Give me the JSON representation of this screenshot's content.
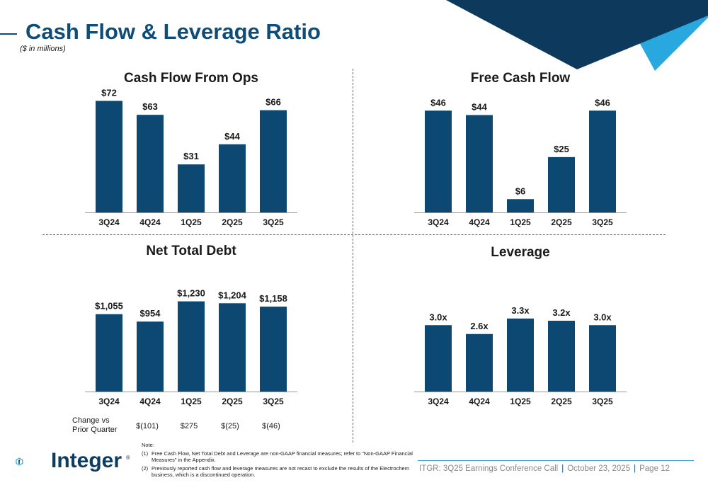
{
  "page": {
    "title": "Cash Flow & Leverage Ratio",
    "subtitle": "($ in millions)"
  },
  "colors": {
    "bar": "#0d4872",
    "title": "#0e4d7a",
    "accent_light": "#29a8e0",
    "accent_dark": "#0d3a5c"
  },
  "chart_data": [
    {
      "type": "bar",
      "title": "Cash Flow From Ops",
      "categories": [
        "3Q24",
        "4Q24",
        "1Q25",
        "2Q25",
        "3Q25"
      ],
      "values": [
        72,
        63,
        31,
        44,
        66
      ],
      "labels": [
        "$72",
        "$63",
        "$31",
        "$44",
        "$66"
      ],
      "ylim": [
        0,
        80
      ],
      "grid": false
    },
    {
      "type": "bar",
      "title": "Free Cash Flow",
      "categories": [
        "3Q24",
        "4Q24",
        "1Q25",
        "2Q25",
        "3Q25"
      ],
      "values": [
        46,
        44,
        6,
        25,
        46
      ],
      "labels": [
        "$46",
        "$44",
        "$6",
        "$25",
        "$46"
      ],
      "ylim": [
        0,
        56
      ],
      "grid": false
    },
    {
      "type": "bar",
      "title": "Net Total Debt",
      "categories": [
        "3Q24",
        "4Q24",
        "1Q25",
        "2Q25",
        "3Q25"
      ],
      "values": [
        1055,
        954,
        1230,
        1204,
        1158
      ],
      "labels": [
        "$1,055",
        "$954",
        "$1,230",
        "$1,204",
        "$1,158"
      ],
      "ylim": [
        0,
        1400
      ],
      "grid": false
    },
    {
      "type": "bar",
      "title": "Leverage",
      "categories": [
        "3Q24",
        "4Q24",
        "1Q25",
        "2Q25",
        "3Q25"
      ],
      "values": [
        3.0,
        2.6,
        3.3,
        3.2,
        3.0
      ],
      "labels": [
        "3.0x",
        "2.6x",
        "3.3x",
        "3.2x",
        "3.0x"
      ],
      "ylim": [
        0,
        4.8
      ],
      "grid": false
    }
  ],
  "change_vs_prior": {
    "label_line1": "Change vs",
    "label_line2": "Prior Quarter",
    "values": [
      "$(101)",
      "$275",
      "$(25)",
      "$(46)"
    ]
  },
  "logo": {
    "text": "Integer",
    "reg": "®"
  },
  "note": {
    "heading": "Note:",
    "items": [
      {
        "num": "(1)",
        "text": "Free Cash Flow, Net Total Debt and Leverage are non-GAAP financial measures; refer to “Non-GAAP Financial Measures” in the Appendix."
      },
      {
        "num": "(2)",
        "text": "Previously reported cash flow and leverage measures are not recast to exclude the results of the Electrochem business, which is a discontinued operation."
      }
    ]
  },
  "footer": {
    "event": "ITGR: 3Q25 Earnings Conference Call",
    "date": "October 23, 2025",
    "page": "Page 12",
    "sep": "|"
  }
}
